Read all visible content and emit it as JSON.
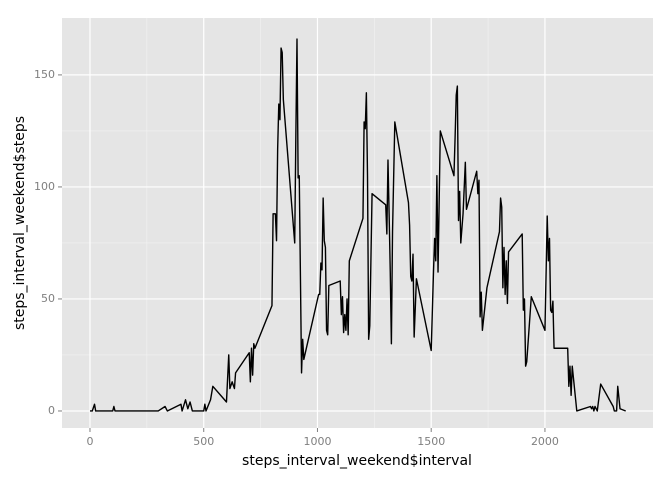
{
  "chart_data": {
    "type": "line",
    "x_label": "steps_interval_weekend$interval",
    "y_label": "steps_interval_weekend$steps",
    "x": [
      0,
      10,
      20,
      25,
      100,
      105,
      110,
      200,
      300,
      330,
      340,
      400,
      405,
      420,
      430,
      440,
      450,
      500,
      505,
      510,
      530,
      540,
      600,
      610,
      615,
      625,
      635,
      640,
      700,
      705,
      710,
      715,
      720,
      725,
      800,
      805,
      815,
      820,
      825,
      830,
      835,
      840,
      845,
      850,
      900,
      905,
      910,
      915,
      920,
      930,
      935,
      940,
      1005,
      1010,
      1015,
      1020,
      1025,
      1030,
      1035,
      1040,
      1045,
      1050,
      1100,
      1105,
      1110,
      1115,
      1120,
      1125,
      1130,
      1135,
      1140,
      1200,
      1205,
      1210,
      1215,
      1220,
      1225,
      1230,
      1240,
      1300,
      1305,
      1310,
      1315,
      1320,
      1325,
      1330,
      1340,
      1400,
      1405,
      1410,
      1415,
      1420,
      1425,
      1435,
      1500,
      1510,
      1515,
      1520,
      1525,
      1530,
      1540,
      1600,
      1605,
      1610,
      1615,
      1620,
      1625,
      1630,
      1640,
      1650,
      1655,
      1700,
      1705,
      1710,
      1715,
      1720,
      1725,
      1745,
      1800,
      1805,
      1810,
      1815,
      1820,
      1825,
      1830,
      1835,
      1840,
      1900,
      1905,
      1910,
      1915,
      1920,
      1940,
      2000,
      2010,
      2015,
      2020,
      2025,
      2030,
      2035,
      2040,
      2100,
      2105,
      2110,
      2115,
      2120,
      2130,
      2140,
      2200,
      2205,
      2210,
      2215,
      2220,
      2230,
      2245,
      2300,
      2305,
      2315,
      2320,
      2330,
      2355
    ],
    "series": [
      {
        "color": "#000000",
        "values": [
          0,
          0,
          3,
          0,
          0,
          2,
          0,
          0,
          0,
          2,
          0,
          3,
          0,
          5,
          1,
          4,
          0,
          0,
          3,
          0,
          5,
          11,
          4,
          25,
          10,
          13,
          10,
          17,
          26,
          13,
          28,
          16,
          30,
          28,
          47,
          88,
          88,
          76,
          117,
          137,
          130,
          162,
          160,
          139,
          75,
          123,
          166,
          104,
          105,
          17,
          32,
          23,
          52,
          52,
          66,
          63,
          95,
          76,
          73,
          36,
          34,
          56,
          58,
          43,
          51,
          35,
          43,
          36,
          50,
          34,
          67,
          86,
          129,
          126,
          142,
          105,
          32,
          38,
          97,
          92,
          79,
          112,
          88,
          62,
          30,
          80,
          129,
          93,
          83,
          60,
          58,
          70,
          33,
          59,
          27,
          62,
          77,
          67,
          105,
          62,
          125,
          105,
          122,
          141,
          145,
          85,
          98,
          75,
          88,
          111,
          90,
          107,
          97,
          103,
          42,
          53,
          36,
          55,
          80,
          95,
          91,
          55,
          73,
          52,
          67,
          48,
          71,
          79,
          45,
          50,
          20,
          22,
          51,
          36,
          87,
          67,
          77,
          45,
          44,
          49,
          28,
          28,
          11,
          20,
          7,
          20,
          10,
          0,
          2,
          1,
          2,
          0,
          2,
          0,
          12,
          2,
          0,
          0,
          11,
          1,
          0
        ]
      }
    ],
    "xlim": [
      -123,
      2475
    ],
    "ylim": [
      -7.6,
      175.4
    ],
    "xticks": [
      0,
      500,
      1000,
      1500,
      2000
    ],
    "yticks": [
      0,
      50,
      100,
      150
    ],
    "grid": true
  }
}
